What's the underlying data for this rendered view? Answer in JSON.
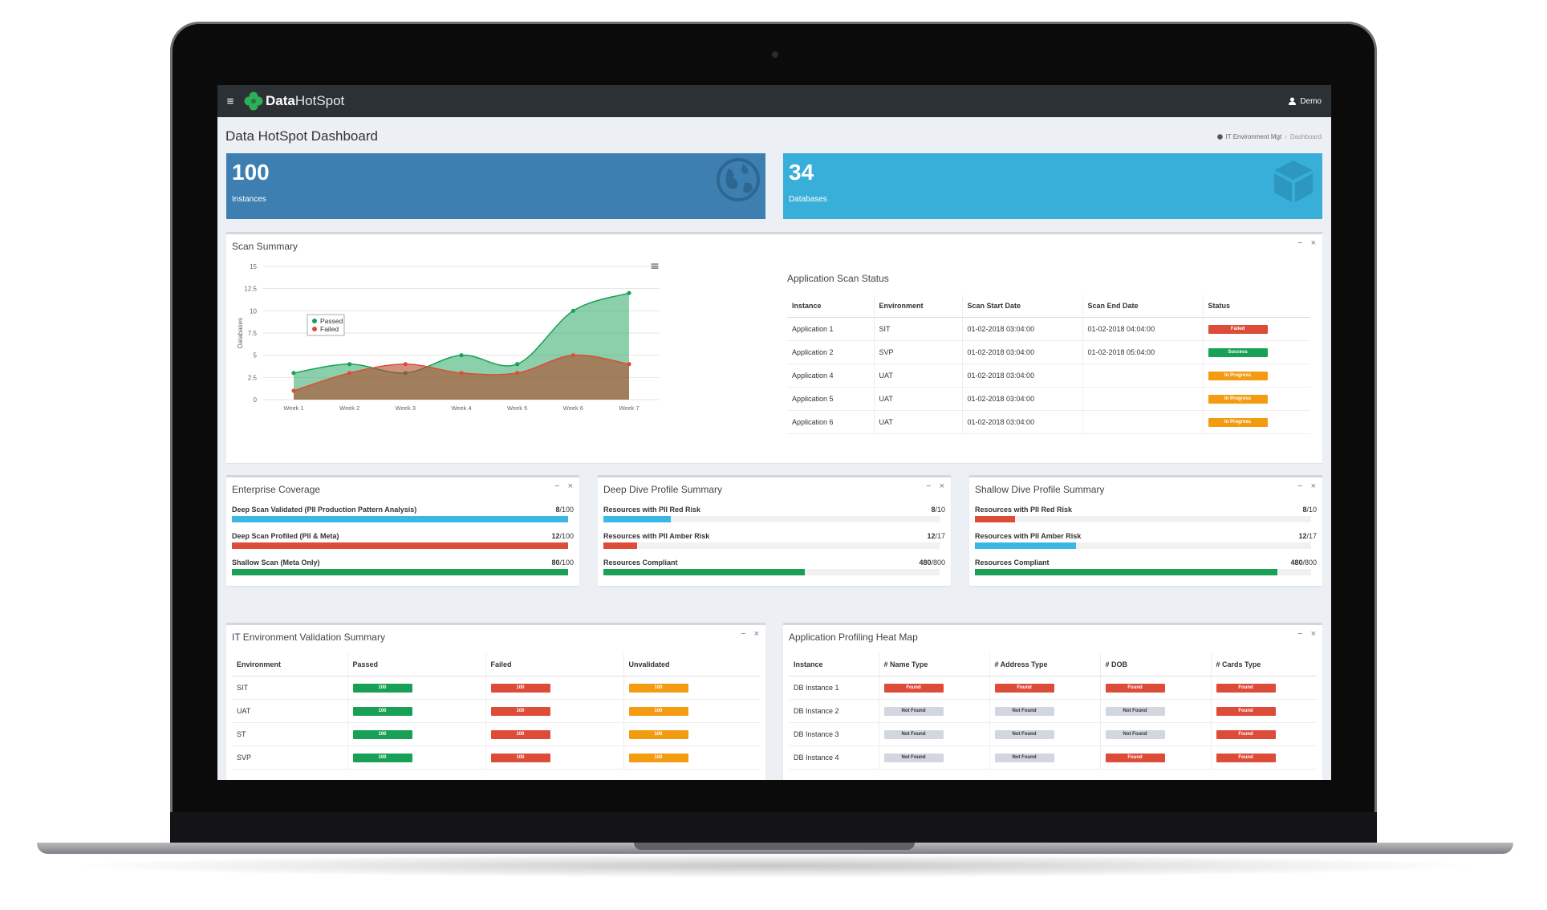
{
  "app": {
    "logo_bold": "Data",
    "logo_light": "HotSpot",
    "user": "Demo"
  },
  "page": {
    "title": "Data HotSpot Dashboard"
  },
  "breadcrumb": {
    "parent": "IT Environment Mgt",
    "current": "Dashboard"
  },
  "info_boxes": [
    {
      "value": "100",
      "label": "Instances",
      "color": "#3c7fb0",
      "icon": "globe-icon"
    },
    {
      "value": "34",
      "label": "Databases",
      "color": "#38afd8",
      "icon": "cube-icon"
    }
  ],
  "panel_tools": {
    "minimize": "−",
    "close": "×"
  },
  "scan_summary": {
    "title": "Scan Summary",
    "menu_icon": "≡",
    "chart_data": {
      "type": "area",
      "x": [
        "Week 1",
        "Week 2",
        "Week 3",
        "Week 4",
        "Week 5",
        "Week 6",
        "Week 7"
      ],
      "ylabel": "Databases",
      "ylim": [
        0,
        15
      ],
      "yticks": [
        "0",
        "2.5",
        "5",
        "7.5",
        "10",
        "12.5",
        "15"
      ],
      "series": [
        {
          "name": "Passed",
          "color": "#18a155",
          "values": [
            3,
            4,
            3,
            5,
            4,
            10,
            12
          ]
        },
        {
          "name": "Failed",
          "color": "#dd4b39",
          "values": [
            1,
            3,
            4,
            3,
            3,
            5,
            4
          ]
        }
      ],
      "legend": "inside-left",
      "grid": true
    }
  },
  "app_scan_status": {
    "title": "Application Scan Status",
    "columns": [
      "Instance",
      "Environment",
      "Scan Start Date",
      "Scan End Date",
      "Status"
    ],
    "rows": [
      {
        "instance": "Application 1",
        "env": "SIT",
        "start": "01-02-2018 03:04:00",
        "end": "01-02-2018 04:04:00",
        "status": "Failed",
        "badge": "failed"
      },
      {
        "instance": "Application 2",
        "env": "SVP",
        "start": "01-02-2018 03:04:00",
        "end": "01-02-2018 05:04:00",
        "status": "Success",
        "badge": "success"
      },
      {
        "instance": "Application 4",
        "env": "UAT",
        "start": "01-02-2018 03:04:00",
        "end": "",
        "status": "In Progress",
        "badge": "progress"
      },
      {
        "instance": "Application 5",
        "env": "UAT",
        "start": "01-02-2018 03:04:00",
        "end": "",
        "status": "In Progress",
        "badge": "progress"
      },
      {
        "instance": "Application 6",
        "env": "UAT",
        "start": "01-02-2018 03:04:00",
        "end": "",
        "status": "In Progress",
        "badge": "progress"
      }
    ]
  },
  "progress_panels": [
    {
      "title": "Enterprise Coverage",
      "items": [
        {
          "label": "Deep Scan Validated (PII Production Pattern Analysis)",
          "value": "8",
          "total": "/100",
          "fill": 1.0,
          "color": "aqua"
        },
        {
          "label": "Deep Scan Profiled (PII & Meta)",
          "value": "12",
          "total": "/100",
          "fill": 1.0,
          "color": "red"
        },
        {
          "label": "Shallow Scan (Meta Only)",
          "value": "80",
          "total": "/100",
          "fill": 1.0,
          "color": "green"
        }
      ]
    },
    {
      "title": "Deep Dive Profile Summary",
      "items": [
        {
          "label": "Resources with PII Red Risk",
          "value": "8",
          "total": "/10",
          "fill": 0.2,
          "color": "aqua"
        },
        {
          "label": "Resources with PII Amber Risk",
          "value": "12",
          "total": "/17",
          "fill": 0.1,
          "color": "red"
        },
        {
          "label": "Resources Compliant",
          "value": "480",
          "total": "/800",
          "fill": 0.6,
          "color": "green"
        }
      ]
    },
    {
      "title": "Shallow Dive Profile Summary",
      "items": [
        {
          "label": "Resources with PII Red Risk",
          "value": "8",
          "total": "/10",
          "fill": 0.12,
          "color": "red"
        },
        {
          "label": "Resources with PII Amber Risk",
          "value": "12",
          "total": "/17",
          "fill": 0.3,
          "color": "aqua"
        },
        {
          "label": "Resources Compliant",
          "value": "480",
          "total": "/800",
          "fill": 0.9,
          "color": "green"
        }
      ]
    }
  ],
  "env_validation": {
    "title": "IT Environment Validation Summary",
    "columns": [
      "Environment",
      "Passed",
      "Failed",
      "Unvalidated"
    ],
    "rows": [
      {
        "env": "SIT",
        "passed": "100",
        "failed": "100",
        "unvalidated": "100"
      },
      {
        "env": "UAT",
        "passed": "100",
        "failed": "100",
        "unvalidated": "100"
      },
      {
        "env": "ST",
        "passed": "100",
        "failed": "100",
        "unvalidated": "100"
      },
      {
        "env": "SVP",
        "passed": "100",
        "failed": "100",
        "unvalidated": "100"
      }
    ]
  },
  "heat_map": {
    "title": "Application Profiling Heat Map",
    "columns": [
      "Instance",
      "# Name Type",
      "# Address Type",
      "# DOB",
      "# Cards Type"
    ],
    "rows": [
      {
        "instance": "DB Instance 1",
        "cells": [
          "Found",
          "Found",
          "Found",
          "Found"
        ]
      },
      {
        "instance": "DB Instance 2",
        "cells": [
          "Not Found",
          "Not Found",
          "Not Found",
          "Found"
        ]
      },
      {
        "instance": "DB Instance 3",
        "cells": [
          "Not Found",
          "Not Found",
          "Not Found",
          "Found"
        ]
      },
      {
        "instance": "DB Instance 4",
        "cells": [
          "Not Found",
          "Not Found",
          "Found",
          "Found"
        ]
      }
    ]
  }
}
